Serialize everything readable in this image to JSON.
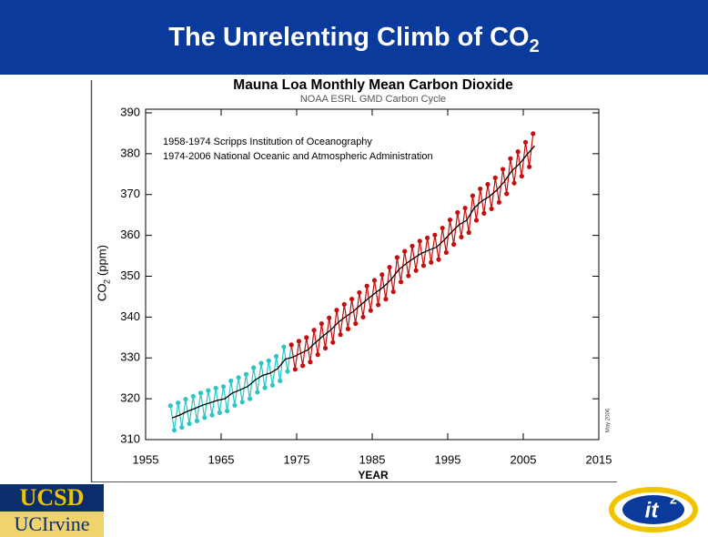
{
  "header": {
    "title": "The Unrelenting Climb of CO",
    "title_subscript": "2"
  },
  "logos": {
    "left_top": "UCSD",
    "left_bottom": "UCIrvine",
    "right": "it",
    "right_superscript": "2"
  },
  "chart_data": {
    "type": "line",
    "title": "Mauna Loa Monthly Mean Carbon Dioxide",
    "subtitle": "NOAA ESRL GMD Carbon Cycle",
    "x_label": "YEAR",
    "y_label": "CO",
    "y_label_subscript": "2",
    "y_label_unit": "(ppm)",
    "date_note": "May 2006",
    "xlim": [
      1955,
      2015
    ],
    "xticks": [
      1955,
      1965,
      1975,
      1985,
      1995,
      2005,
      2015
    ],
    "ylim": [
      310,
      390
    ],
    "yticks": [
      310,
      320,
      330,
      340,
      350,
      360,
      370,
      380,
      390
    ],
    "series": [
      {
        "name": "1958-1974 Scripps Institution of Oceanography",
        "color": "#2ec4c4",
        "markers": true,
        "x": [
          1958.3,
          1958.8,
          1959.3,
          1959.8,
          1960.3,
          1960.8,
          1961.3,
          1961.8,
          1962.3,
          1962.8,
          1963.3,
          1963.8,
          1964.3,
          1964.8,
          1965.3,
          1965.8,
          1966.3,
          1966.8,
          1967.3,
          1967.8,
          1968.3,
          1968.8,
          1969.3,
          1969.8,
          1970.3,
          1970.8,
          1971.3,
          1971.8,
          1972.3,
          1972.8,
          1973.3,
          1973.8,
          1974.3
        ],
        "values": [
          318.3,
          312.3,
          319.0,
          313.0,
          319.9,
          313.9,
          320.6,
          314.6,
          321.4,
          315.4,
          322.0,
          316.0,
          322.6,
          316.6,
          323.0,
          317.0,
          324.4,
          318.4,
          325.2,
          319.2,
          326.0,
          320.0,
          327.6,
          321.6,
          328.7,
          322.7,
          329.3,
          323.3,
          330.4,
          324.4,
          332.7,
          326.7,
          333.2
        ]
      },
      {
        "name": "1974-2006 National Oceanic and Atmospheric Administration",
        "color": "#c40f0f",
        "markers": true,
        "x": [
          1974.3,
          1974.8,
          1975.3,
          1975.8,
          1976.3,
          1976.8,
          1977.3,
          1977.8,
          1978.3,
          1978.8,
          1979.3,
          1979.8,
          1980.3,
          1980.8,
          1981.3,
          1981.8,
          1982.3,
          1982.8,
          1983.3,
          1983.8,
          1984.3,
          1984.8,
          1985.3,
          1985.8,
          1986.3,
          1986.8,
          1987.3,
          1987.8,
          1988.3,
          1988.8,
          1989.3,
          1989.8,
          1990.3,
          1990.8,
          1991.3,
          1991.8,
          1992.3,
          1992.8,
          1993.3,
          1993.8,
          1994.3,
          1994.8,
          1995.3,
          1995.8,
          1996.3,
          1996.8,
          1997.3,
          1997.8,
          1998.3,
          1998.8,
          1999.3,
          1999.8,
          2000.3,
          2000.8,
          2001.3,
          2001.8,
          2002.3,
          2002.8,
          2003.3,
          2003.8,
          2004.3,
          2004.8,
          2005.3,
          2005.8,
          2006.3
        ],
        "values": [
          333.2,
          327.2,
          334.1,
          328.1,
          335.0,
          329.0,
          336.8,
          330.8,
          338.4,
          332.4,
          339.8,
          333.8,
          341.7,
          335.7,
          343.1,
          337.1,
          344.4,
          338.4,
          346.0,
          340.0,
          347.6,
          341.6,
          349.0,
          343.0,
          350.4,
          344.4,
          352.2,
          346.2,
          354.6,
          348.6,
          356.1,
          350.1,
          357.4,
          351.4,
          358.6,
          352.6,
          359.4,
          353.4,
          360.1,
          354.1,
          361.8,
          355.8,
          363.8,
          357.8,
          365.6,
          359.6,
          366.7,
          360.7,
          369.7,
          363.7,
          371.4,
          365.4,
          372.5,
          366.5,
          374.1,
          368.1,
          376.2,
          370.2,
          378.8,
          372.8,
          380.5,
          374.5,
          382.8,
          376.8,
          384.9
        ]
      },
      {
        "color": "#000000",
        "markers": false,
        "x": [
          1958.5,
          1959.5,
          1960.5,
          1961.5,
          1962.5,
          1963.5,
          1964.5,
          1965.5,
          1966.5,
          1967.5,
          1968.5,
          1969.5,
          1970.5,
          1971.5,
          1972.5,
          1973.5,
          1974.5,
          1975.5,
          1976.5,
          1977.5,
          1978.5,
          1979.5,
          1980.5,
          1981.5,
          1982.5,
          1983.5,
          1984.5,
          1985.5,
          1986.5,
          1987.5,
          1988.5,
          1989.5,
          1990.5,
          1991.5,
          1992.5,
          1993.5,
          1994.5,
          1995.5,
          1996.5,
          1997.5,
          1998.5,
          1999.5,
          2000.5,
          2001.5,
          2002.5,
          2003.5,
          2004.5,
          2005.5,
          2006.5
        ],
        "values": [
          315.3,
          316.0,
          316.9,
          317.6,
          318.4,
          319.0,
          319.6,
          320.0,
          321.4,
          322.2,
          323.0,
          324.6,
          325.7,
          326.3,
          327.4,
          329.7,
          330.2,
          331.1,
          332.0,
          333.8,
          335.4,
          336.8,
          338.7,
          340.1,
          341.4,
          343.0,
          344.6,
          346.0,
          347.4,
          349.2,
          351.6,
          353.1,
          354.4,
          355.6,
          356.4,
          357.1,
          358.8,
          360.8,
          362.6,
          363.7,
          366.7,
          368.4,
          369.5,
          371.1,
          373.2,
          375.8,
          377.5,
          379.8,
          381.9
        ]
      }
    ]
  }
}
